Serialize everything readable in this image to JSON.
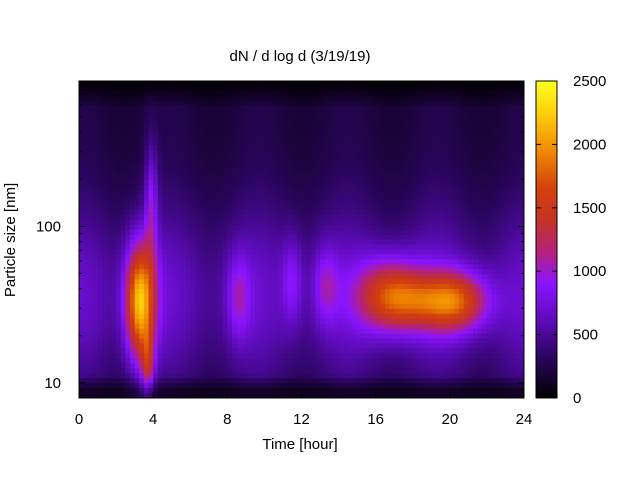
{
  "chart_data": {
    "type": "heatmap",
    "title": "dN / d log d (3/19/19)",
    "xlabel": "Time [hour]",
    "ylabel": "Particle size [nm]",
    "xlim": [
      0,
      24
    ],
    "x_ticks": [
      0,
      4,
      8,
      12,
      16,
      20,
      24
    ],
    "y_scale": "log",
    "ylim": [
      8,
      850
    ],
    "y_ticks": [
      10,
      100
    ],
    "colorbar": {
      "range": [
        0,
        2500
      ],
      "ticks": [
        0,
        500,
        1000,
        1500,
        2000,
        2500
      ],
      "colormap": [
        "#000000",
        "#5a0bb5",
        "#8a14ff",
        "#b4227d",
        "#d2400d",
        "#f08a00",
        "#ffe31a",
        "#ffff20"
      ]
    },
    "features": [
      {
        "t": 3.6,
        "d": 16,
        "value": 2150
      },
      {
        "t": 3.0,
        "d": 40,
        "value": 1750
      },
      {
        "t": 16.8,
        "d": 35,
        "value": 1500
      },
      {
        "t": 20.5,
        "d": 33,
        "value": 1420
      },
      {
        "t": 8.5,
        "d": 35,
        "value": 1000
      },
      {
        "t": 11.5,
        "d": 45,
        "value": 950
      },
      {
        "t": 13.3,
        "d": 42,
        "value": 1000
      }
    ]
  }
}
